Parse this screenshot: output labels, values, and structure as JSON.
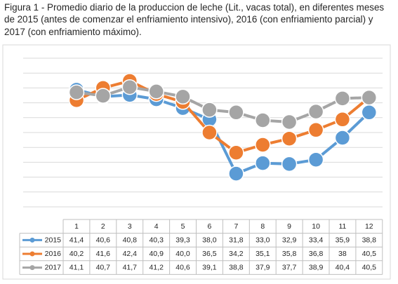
{
  "caption": "Figura 1 - Promedio diario de la produccion de leche (Lit., vacas total), en diferentes meses de 2015 (antes de comenzar el enfriamiento intensivo), 2016 (con enfriamiento parcial) y 2017 (con enfriamiento máximo).",
  "chart_data": {
    "type": "line",
    "title": "",
    "xlabel": "",
    "ylabel": "",
    "x": [
      "1",
      "2",
      "3",
      "4",
      "5",
      "6",
      "7",
      "8",
      "9",
      "10",
      "11",
      "12"
    ],
    "ylim": [
      28,
      45
    ],
    "grid": true,
    "legend": "data-table-left",
    "series": [
      {
        "name": "2015",
        "color": "#5B9BD5",
        "values": [
          41.4,
          40.6,
          40.8,
          40.3,
          39.3,
          38.0,
          31.8,
          33.0,
          32.9,
          33.4,
          35.9,
          38.8
        ],
        "labels": [
          "41,4",
          "40,6",
          "40,8",
          "40,3",
          "39,3",
          "38,0",
          "31,8",
          "33,0",
          "32,9",
          "33,4",
          "35,9",
          "38,8"
        ]
      },
      {
        "name": "2016",
        "color": "#ED7D31",
        "values": [
          40.2,
          41.6,
          42.4,
          40.9,
          40.0,
          36.5,
          34.2,
          35.1,
          35.8,
          36.8,
          38,
          40.5
        ],
        "labels": [
          "40,2",
          "41,6",
          "42,4",
          "40,9",
          "40,0",
          "36,5",
          "34,2",
          "35,1",
          "35,8",
          "36,8",
          "38",
          "40,5"
        ]
      },
      {
        "name": "2017",
        "color": "#A5A5A5",
        "values": [
          41.1,
          40.7,
          41.7,
          41.2,
          40.6,
          39.1,
          38.8,
          37.9,
          37.7,
          38.9,
          40.4,
          40.5
        ],
        "labels": [
          "41,1",
          "40,7",
          "41,7",
          "41,2",
          "40,6",
          "39,1",
          "38,8",
          "37,9",
          "37,7",
          "38,9",
          "40,4",
          "40,5"
        ]
      }
    ]
  }
}
